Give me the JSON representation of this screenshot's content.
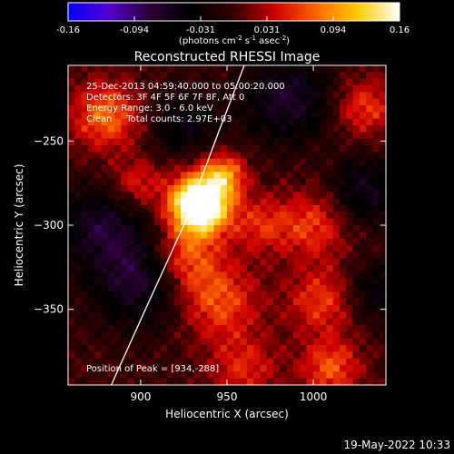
{
  "chart_data": {
    "type": "heatmap",
    "title": "Reconstructed RHESSI Image",
    "xlabel": "Heliocentric X (arcsec)",
    "ylabel": "Heliocentric Y (arcsec)",
    "xlim": [
      858,
      1042
    ],
    "ylim": [
      -395,
      -205
    ],
    "x_ticks": [
      900,
      950,
      1000
    ],
    "y_ticks": [
      -250,
      -300,
      -350
    ],
    "colorbar": {
      "vmin": -0.16,
      "vmax": 0.16,
      "ticks": [
        "-0.16",
        "-0.094",
        "-0.031",
        "0.031",
        "0.094",
        "0.16"
      ],
      "label_prefix": "(photons cm",
      "label_sup1": "-2",
      "label_mid1": " s",
      "label_sup2": "-1",
      "label_mid2": " asec",
      "label_sup3": "-2",
      "label_suffix": ")",
      "colors": [
        "#0000ff",
        "#5500cc",
        "#2a0033",
        "#000000",
        "#330000",
        "#cc0000",
        "#ff6600",
        "#ffcc00",
        "#ffffff"
      ]
    },
    "annotations": {
      "time_range": "25-Dec-2013 04:59:40.000 to 05:00:20.000",
      "detectors": "Detectors: 3F 4F 5F 6F 7F 8F, Att 0",
      "energy": "Energy Range: 3.0 - 6.0 keV",
      "method": "Clean     Total counts: 2.97E+03",
      "peak": "Position of Peak = [934,-288]"
    },
    "peak": {
      "x": 934,
      "y": -288
    },
    "limb_curve": [
      [
        883,
        -395
      ],
      [
        905,
        -345
      ],
      [
        925,
        -300
      ],
      [
        945,
        -245
      ],
      [
        960,
        -205
      ]
    ],
    "sources": [
      {
        "x": 934,
        "y": -288,
        "amp": 0.22,
        "sigma": 12
      },
      {
        "x": 948,
        "y": -270,
        "amp": 0.09,
        "sigma": 9
      },
      {
        "x": 925,
        "y": -320,
        "amp": 0.08,
        "sigma": 14
      },
      {
        "x": 945,
        "y": -345,
        "amp": 0.07,
        "sigma": 16
      },
      {
        "x": 1000,
        "y": -300,
        "amp": 0.06,
        "sigma": 14
      },
      {
        "x": 1005,
        "y": -345,
        "amp": 0.06,
        "sigma": 14
      },
      {
        "x": 970,
        "y": -300,
        "amp": 0.05,
        "sigma": 12
      },
      {
        "x": 1010,
        "y": -385,
        "amp": 0.07,
        "sigma": 12
      },
      {
        "x": 880,
        "y": -235,
        "amp": 0.08,
        "sigma": 14
      },
      {
        "x": 1030,
        "y": -230,
        "amp": 0.06,
        "sigma": 12
      },
      {
        "x": 898,
        "y": -275,
        "amp": 0.05,
        "sigma": 10
      },
      {
        "x": 960,
        "y": -385,
        "amp": 0.05,
        "sigma": 14
      },
      {
        "x": 900,
        "y": -330,
        "amp": -0.08,
        "sigma": 20
      },
      {
        "x": 875,
        "y": -300,
        "amp": -0.06,
        "sigma": 16
      },
      {
        "x": 985,
        "y": -225,
        "amp": -0.07,
        "sigma": 18
      },
      {
        "x": 1030,
        "y": -280,
        "amp": -0.06,
        "sigma": 14
      },
      {
        "x": 925,
        "y": -240,
        "amp": -0.05,
        "sigma": 14
      },
      {
        "x": 1035,
        "y": -340,
        "amp": -0.05,
        "sigma": 12
      }
    ]
  },
  "footer": {
    "timestamp": "19-May-2022 10:33"
  }
}
